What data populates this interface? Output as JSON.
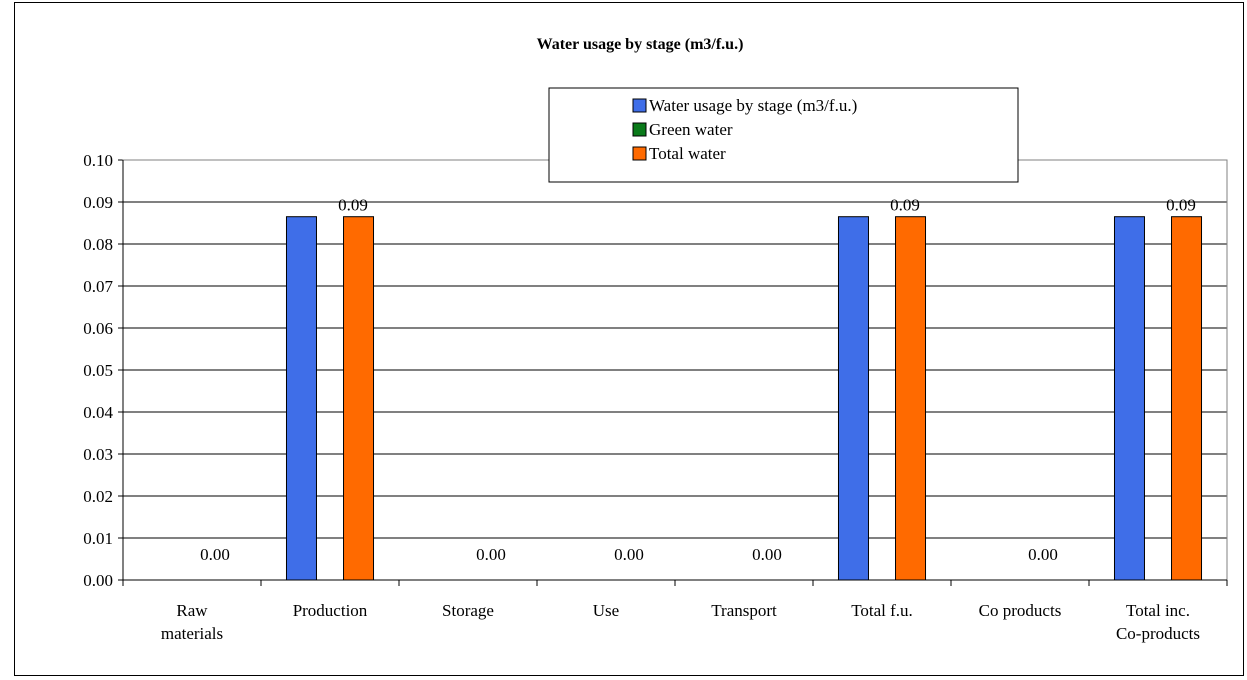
{
  "chart_data": {
    "type": "bar",
    "title": "Water usage by stage (m3/f.u.)",
    "xlabel": "",
    "ylabel": "",
    "ylim": [
      0,
      0.1
    ],
    "yticks": [
      "0.00",
      "0.01",
      "0.02",
      "0.03",
      "0.04",
      "0.05",
      "0.06",
      "0.07",
      "0.08",
      "0.09",
      "0.10"
    ],
    "grid": "horizontal",
    "legend_position": "top-center",
    "categories": [
      [
        "Raw",
        "materials"
      ],
      [
        "Production"
      ],
      [
        "Storage"
      ],
      [
        "Use"
      ],
      [
        "Transport"
      ],
      [
        "Total f.u."
      ],
      [
        "Co products"
      ],
      [
        "Total inc.",
        "Co-products"
      ]
    ],
    "series": [
      {
        "name": "Water usage by stage (m3/f.u.)",
        "color": "#3f6ee8",
        "values": [
          0,
          0.0865,
          0,
          0,
          0,
          0.0865,
          0,
          0.0865
        ]
      },
      {
        "name": "Green water",
        "color": "#0a7a1a",
        "values": [
          0,
          0,
          0,
          0,
          0,
          0,
          0,
          0
        ]
      },
      {
        "name": "Total water",
        "color": "#ff6a00",
        "values": [
          0,
          0.0865,
          0,
          0,
          0,
          0.0865,
          0,
          0.0865
        ]
      }
    ],
    "data_labels": [
      "0.00",
      "0.09",
      "0.00",
      "0.00",
      "0.00",
      "0.09",
      "0.00",
      "0.09"
    ]
  }
}
